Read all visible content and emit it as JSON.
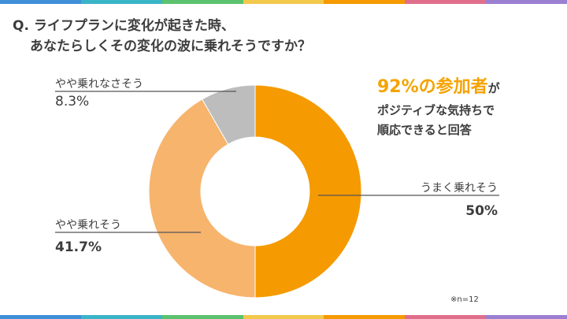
{
  "question": {
    "line1": "Q. ライフプランに変化が起きた時、",
    "line2": "あなたらしくその変化の波に乗れそうですか？"
  },
  "chart_data": {
    "type": "pie",
    "categories": [
      "うまく乗れそう",
      "やや乗れそう",
      "やや乗れなさそう"
    ],
    "values": [
      50,
      41.7,
      8.3
    ],
    "labels": [
      "50%",
      "41.7%",
      "8.3%"
    ],
    "colors": [
      "#f59a00",
      "#f7b46d",
      "#bdbdbd"
    ],
    "title": "",
    "note": "※n=12"
  },
  "callout": {
    "headline": "92%の参加者",
    "headline_suffix": "が",
    "line1": "ポジティブな気持ちで",
    "line2": "順応できると回答"
  },
  "stripe_colors": [
    "#3f8fd9",
    "#39b5c7",
    "#5cc26e",
    "#f2c94c",
    "#f59a00",
    "#e06f8b",
    "#9b7fd1"
  ]
}
